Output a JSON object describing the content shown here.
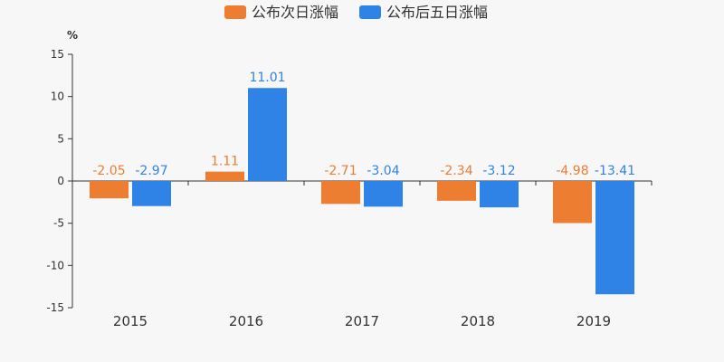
{
  "chart_data": {
    "type": "bar",
    "categories": [
      "2015",
      "2016",
      "2017",
      "2018",
      "2019"
    ],
    "series": [
      {
        "name": "公布次日涨幅",
        "color": "#ed7d31",
        "values": [
          -2.05,
          1.11,
          -2.71,
          -2.34,
          -4.98
        ],
        "labels": [
          "-2.05",
          "1.11",
          "-2.71",
          "-2.34",
          "-4.98"
        ]
      },
      {
        "name": "公布后五日涨幅",
        "color": "#3083e6",
        "values": [
          -2.97,
          11.01,
          -3.04,
          -3.12,
          -13.41
        ],
        "labels": [
          "-2.97",
          "11.01",
          "-3.04",
          "-3.12",
          "-13.41"
        ]
      }
    ],
    "ylabel": "%",
    "ylim": [
      -15,
      15
    ],
    "yticks": [
      15,
      10,
      5,
      0,
      -5,
      -10,
      -15
    ],
    "legend_position": "top-center",
    "grid": false
  }
}
